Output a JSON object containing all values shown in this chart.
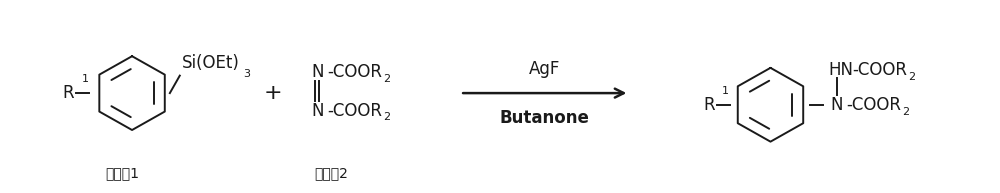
{
  "bg_color": "#ffffff",
  "fig_width": 10.0,
  "fig_height": 1.93,
  "dpi": 100,
  "reactant1_label": "反应物1",
  "reactant2_label": "反应物2",
  "arrow_reagent1": "AgF",
  "arrow_reagent2": "Butanone",
  "text_color": "#1a1a1a",
  "line_color": "#1a1a1a",
  "font_size_main": 12,
  "font_size_sub": 8,
  "font_size_label": 10
}
